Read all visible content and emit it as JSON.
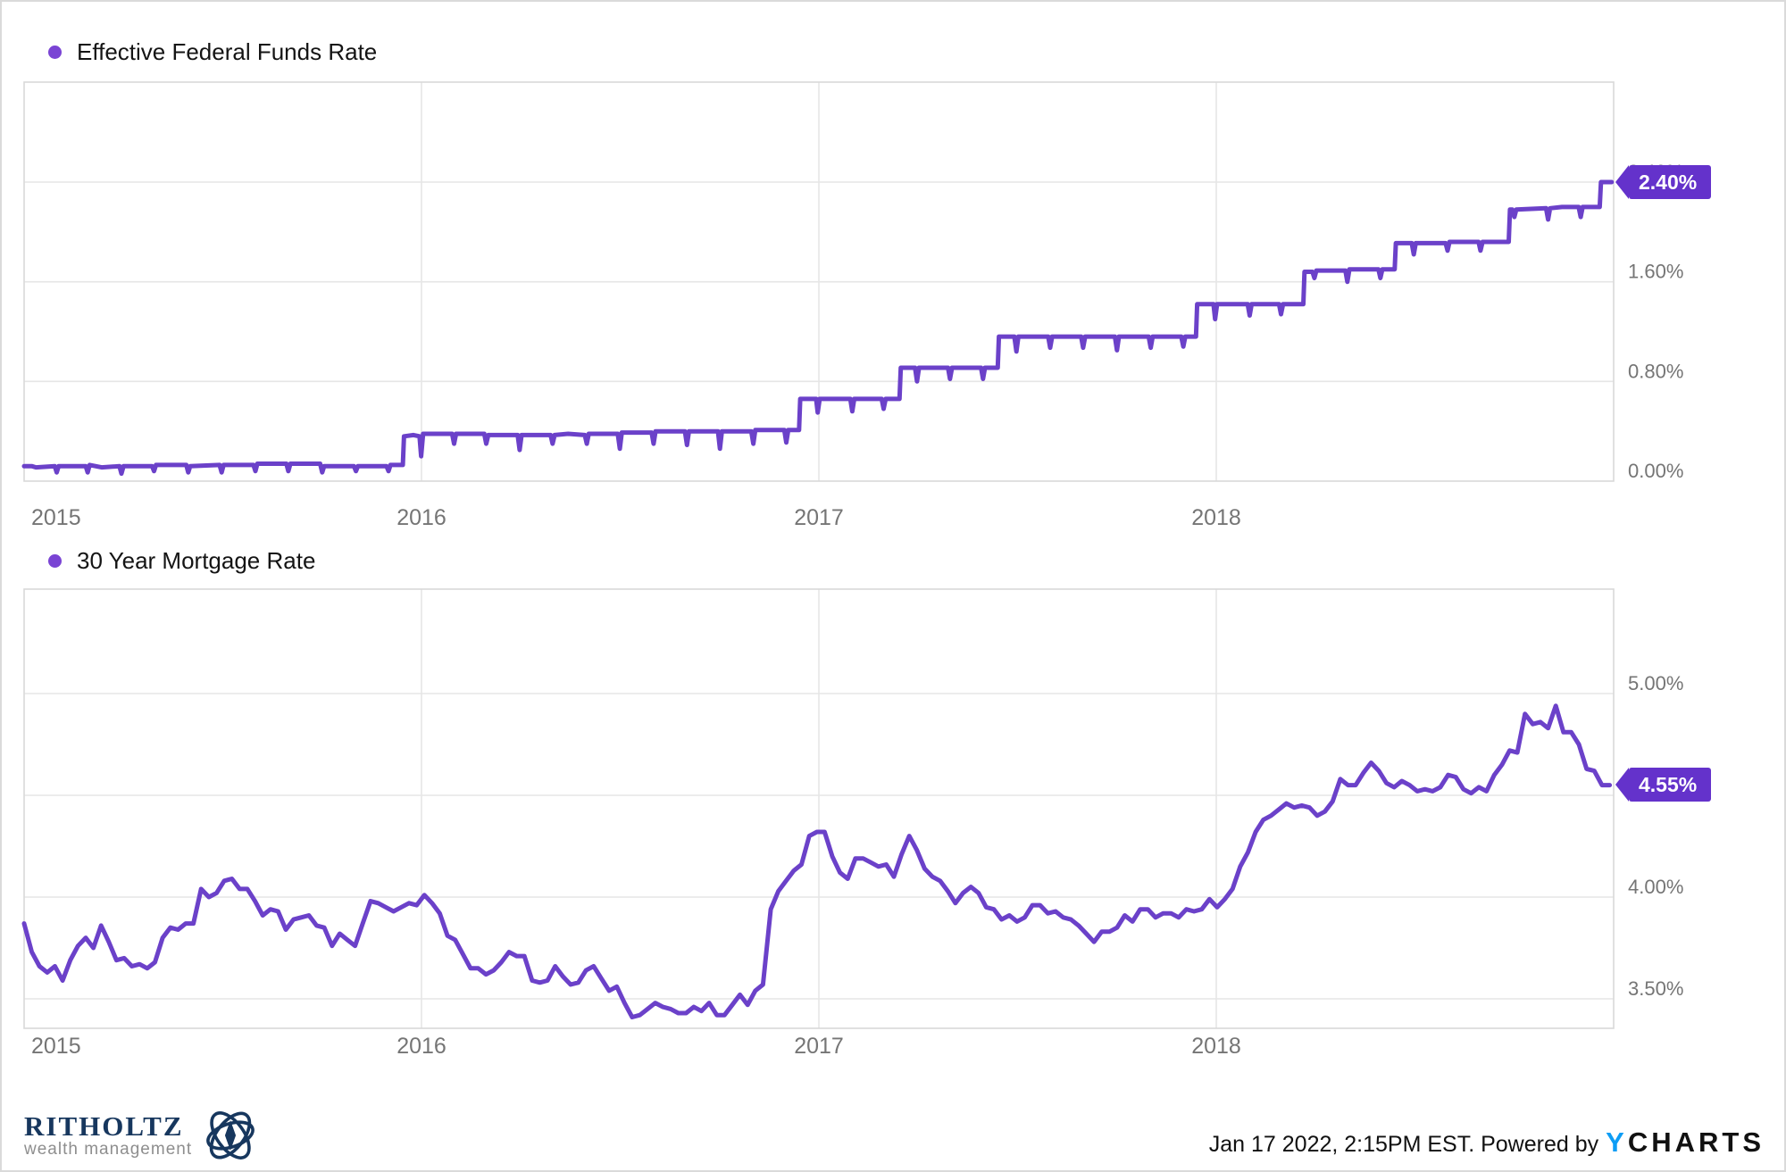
{
  "footer": {
    "timestamp": "Jan 17 2022, 2:15PM EST. Powered by",
    "ycharts_y": "Y",
    "ycharts_rest": "CHARTS",
    "brand_name": "RITHOLTZ",
    "brand_sub": "wealth management"
  },
  "colors": {
    "line": "#6B41C9",
    "badge": "#6432CB",
    "legend_dot": "#7A44D4",
    "gridline": "#E6E6E6",
    "plot_border": "#D9D9D9",
    "tick_text": "#757575",
    "ycharts_blue": "#0D9DF5",
    "brand_navy": "#17375E"
  },
  "chart_data": [
    {
      "type": "line",
      "title": "",
      "legend_label": "Effective Federal Funds Rate",
      "badge_label": "2.40%",
      "last_value": 2.4,
      "xlabel": "",
      "ylabel": "",
      "xlim": [
        2015,
        2019
      ],
      "ylim": [
        0,
        3.2
      ],
      "grid": true,
      "legend_position": "top-left",
      "x_ticks": [
        {
          "t": 2015,
          "label": "2015"
        },
        {
          "t": 2016,
          "label": "2016"
        },
        {
          "t": 2017,
          "label": "2017"
        },
        {
          "t": 2018,
          "label": "2018"
        }
      ],
      "y_ticks": [
        {
          "v": 0.0,
          "label": "0.00%"
        },
        {
          "v": 0.8,
          "label": "0.80%"
        },
        {
          "v": 1.6,
          "label": "1.60%"
        },
        {
          "v": 2.4,
          "label": "2.40%"
        }
      ],
      "gridline_values": [
        0.8,
        1.6,
        2.4
      ],
      "points": [
        [
          2015.0,
          0.12
        ],
        [
          2015.02,
          0.12
        ],
        [
          2015.03,
          0.11
        ],
        [
          2015.077,
          0.12
        ],
        [
          2015.082,
          0.07
        ],
        [
          2015.087,
          0.12
        ],
        [
          2015.155,
          0.12
        ],
        [
          2015.16,
          0.07
        ],
        [
          2015.165,
          0.13
        ],
        [
          2015.195,
          0.11
        ],
        [
          2015.24,
          0.12
        ],
        [
          2015.245,
          0.06
        ],
        [
          2015.25,
          0.12
        ],
        [
          2015.322,
          0.12
        ],
        [
          2015.327,
          0.08
        ],
        [
          2015.332,
          0.13
        ],
        [
          2015.408,
          0.13
        ],
        [
          2015.413,
          0.07
        ],
        [
          2015.418,
          0.12
        ],
        [
          2015.492,
          0.13
        ],
        [
          2015.497,
          0.07
        ],
        [
          2015.502,
          0.13
        ],
        [
          2015.577,
          0.13
        ],
        [
          2015.582,
          0.08
        ],
        [
          2015.587,
          0.14
        ],
        [
          2015.66,
          0.14
        ],
        [
          2015.665,
          0.08
        ],
        [
          2015.67,
          0.14
        ],
        [
          2015.745,
          0.14
        ],
        [
          2015.75,
          0.07
        ],
        [
          2015.755,
          0.12
        ],
        [
          2015.83,
          0.12
        ],
        [
          2015.835,
          0.08
        ],
        [
          2015.84,
          0.12
        ],
        [
          2015.912,
          0.12
        ],
        [
          2015.917,
          0.08
        ],
        [
          2015.922,
          0.13
        ],
        [
          2015.953,
          0.13
        ],
        [
          2015.956,
          0.36
        ],
        [
          2015.98,
          0.37
        ],
        [
          2015.995,
          0.36
        ],
        [
          2015.999,
          0.2
        ],
        [
          2016.004,
          0.38
        ],
        [
          2016.077,
          0.38
        ],
        [
          2016.082,
          0.3
        ],
        [
          2016.087,
          0.38
        ],
        [
          2016.158,
          0.38
        ],
        [
          2016.163,
          0.3
        ],
        [
          2016.168,
          0.37
        ],
        [
          2016.242,
          0.37
        ],
        [
          2016.247,
          0.25
        ],
        [
          2016.252,
          0.37
        ],
        [
          2016.325,
          0.37
        ],
        [
          2016.33,
          0.3
        ],
        [
          2016.335,
          0.37
        ],
        [
          2016.369,
          0.38
        ],
        [
          2016.411,
          0.37
        ],
        [
          2016.416,
          0.3
        ],
        [
          2016.421,
          0.38
        ],
        [
          2016.494,
          0.38
        ],
        [
          2016.499,
          0.26
        ],
        [
          2016.504,
          0.39
        ],
        [
          2016.579,
          0.39
        ],
        [
          2016.584,
          0.3
        ],
        [
          2016.589,
          0.4
        ],
        [
          2016.663,
          0.4
        ],
        [
          2016.668,
          0.29
        ],
        [
          2016.673,
          0.4
        ],
        [
          2016.746,
          0.4
        ],
        [
          2016.751,
          0.26
        ],
        [
          2016.756,
          0.4
        ],
        [
          2016.83,
          0.4
        ],
        [
          2016.835,
          0.3
        ],
        [
          2016.84,
          0.41
        ],
        [
          2016.913,
          0.41
        ],
        [
          2016.918,
          0.31
        ],
        [
          2016.923,
          0.41
        ],
        [
          2016.95,
          0.41
        ],
        [
          2016.953,
          0.66
        ],
        [
          2016.993,
          0.66
        ],
        [
          2016.997,
          0.55
        ],
        [
          2017.002,
          0.66
        ],
        [
          2017.079,
          0.66
        ],
        [
          2017.084,
          0.56
        ],
        [
          2017.089,
          0.66
        ],
        [
          2017.158,
          0.66
        ],
        [
          2017.163,
          0.58
        ],
        [
          2017.168,
          0.66
        ],
        [
          2017.203,
          0.66
        ],
        [
          2017.206,
          0.91
        ],
        [
          2017.242,
          0.91
        ],
        [
          2017.247,
          0.8
        ],
        [
          2017.252,
          0.91
        ],
        [
          2017.325,
          0.91
        ],
        [
          2017.33,
          0.82
        ],
        [
          2017.335,
          0.91
        ],
        [
          2017.408,
          0.91
        ],
        [
          2017.413,
          0.82
        ],
        [
          2017.418,
          0.91
        ],
        [
          2017.45,
          0.91
        ],
        [
          2017.453,
          1.16
        ],
        [
          2017.492,
          1.16
        ],
        [
          2017.497,
          1.04
        ],
        [
          2017.502,
          1.16
        ],
        [
          2017.577,
          1.16
        ],
        [
          2017.582,
          1.07
        ],
        [
          2017.587,
          1.16
        ],
        [
          2017.66,
          1.16
        ],
        [
          2017.665,
          1.07
        ],
        [
          2017.67,
          1.16
        ],
        [
          2017.745,
          1.16
        ],
        [
          2017.75,
          1.05
        ],
        [
          2017.755,
          1.16
        ],
        [
          2017.83,
          1.16
        ],
        [
          2017.835,
          1.07
        ],
        [
          2017.84,
          1.16
        ],
        [
          2017.912,
          1.16
        ],
        [
          2017.917,
          1.08
        ],
        [
          2017.922,
          1.16
        ],
        [
          2017.949,
          1.16
        ],
        [
          2017.952,
          1.42
        ],
        [
          2017.993,
          1.42
        ],
        [
          2017.997,
          1.3
        ],
        [
          2018.002,
          1.42
        ],
        [
          2018.079,
          1.42
        ],
        [
          2018.084,
          1.33
        ],
        [
          2018.089,
          1.42
        ],
        [
          2018.158,
          1.42
        ],
        [
          2018.163,
          1.34
        ],
        [
          2018.168,
          1.42
        ],
        [
          2018.219,
          1.42
        ],
        [
          2018.222,
          1.68
        ],
        [
          2018.242,
          1.68
        ],
        [
          2018.247,
          1.63
        ],
        [
          2018.252,
          1.69
        ],
        [
          2018.325,
          1.69
        ],
        [
          2018.33,
          1.6
        ],
        [
          2018.335,
          1.7
        ],
        [
          2018.408,
          1.7
        ],
        [
          2018.413,
          1.63
        ],
        [
          2018.418,
          1.7
        ],
        [
          2018.449,
          1.7
        ],
        [
          2018.452,
          1.91
        ],
        [
          2018.492,
          1.91
        ],
        [
          2018.497,
          1.82
        ],
        [
          2018.502,
          1.91
        ],
        [
          2018.577,
          1.91
        ],
        [
          2018.582,
          1.85
        ],
        [
          2018.587,
          1.92
        ],
        [
          2018.66,
          1.92
        ],
        [
          2018.665,
          1.85
        ],
        [
          2018.67,
          1.92
        ],
        [
          2018.736,
          1.92
        ],
        [
          2018.739,
          2.18
        ],
        [
          2018.745,
          2.18
        ],
        [
          2018.75,
          2.12
        ],
        [
          2018.755,
          2.18
        ],
        [
          2018.83,
          2.19
        ],
        [
          2018.835,
          2.1
        ],
        [
          2018.84,
          2.19
        ],
        [
          2018.87,
          2.2
        ],
        [
          2018.912,
          2.2
        ],
        [
          2018.917,
          2.12
        ],
        [
          2018.922,
          2.2
        ],
        [
          2018.965,
          2.2
        ],
        [
          2018.968,
          2.4
        ],
        [
          2018.995,
          2.4
        ]
      ]
    },
    {
      "type": "line",
      "title": "",
      "legend_label": "30 Year Mortgage Rate",
      "badge_label": "4.55%",
      "last_value": 4.55,
      "xlabel": "",
      "ylabel": "",
      "xlim": [
        2015,
        2019
      ],
      "ylim": [
        3.35,
        5.5
      ],
      "grid": true,
      "legend_position": "top-left",
      "x_ticks": [
        {
          "t": 2015,
          "label": "2015"
        },
        {
          "t": 2016,
          "label": "2016"
        },
        {
          "t": 2017,
          "label": "2017"
        },
        {
          "t": 2018,
          "label": "2018"
        }
      ],
      "y_ticks": [
        {
          "v": 3.5,
          "label": "3.50%"
        },
        {
          "v": 4.0,
          "label": "4.00%"
        },
        {
          "v": 5.0,
          "label": "5.00%"
        }
      ],
      "gridline_values": [
        3.5,
        4.0,
        4.5,
        5.0
      ],
      "x_start": 2015.0,
      "x_step_years": 0.019369,
      "values": [
        3.87,
        3.73,
        3.66,
        3.63,
        3.66,
        3.59,
        3.69,
        3.76,
        3.8,
        3.75,
        3.86,
        3.78,
        3.69,
        3.7,
        3.66,
        3.67,
        3.65,
        3.68,
        3.8,
        3.85,
        3.84,
        3.87,
        3.87,
        4.04,
        4.0,
        4.02,
        4.08,
        4.09,
        4.04,
        4.04,
        3.98,
        3.91,
        3.94,
        3.93,
        3.84,
        3.89,
        3.9,
        3.91,
        3.86,
        3.85,
        3.76,
        3.82,
        3.79,
        3.76,
        3.87,
        3.98,
        3.97,
        3.95,
        3.93,
        3.95,
        3.97,
        3.96,
        4.01,
        3.97,
        3.92,
        3.81,
        3.79,
        3.72,
        3.65,
        3.65,
        3.62,
        3.64,
        3.68,
        3.73,
        3.71,
        3.71,
        3.59,
        3.58,
        3.59,
        3.66,
        3.61,
        3.57,
        3.58,
        3.64,
        3.66,
        3.6,
        3.54,
        3.56,
        3.48,
        3.41,
        3.42,
        3.45,
        3.48,
        3.46,
        3.45,
        3.43,
        3.43,
        3.46,
        3.44,
        3.48,
        3.42,
        3.42,
        3.47,
        3.52,
        3.47,
        3.54,
        3.57,
        3.94,
        4.03,
        4.08,
        4.13,
        4.16,
        4.3,
        4.32,
        4.32,
        4.2,
        4.12,
        4.09,
        4.19,
        4.19,
        4.17,
        4.15,
        4.16,
        4.1,
        4.21,
        4.3,
        4.23,
        4.14,
        4.1,
        4.08,
        4.03,
        3.97,
        4.02,
        4.05,
        4.02,
        3.95,
        3.94,
        3.89,
        3.91,
        3.88,
        3.9,
        3.96,
        3.96,
        3.92,
        3.93,
        3.9,
        3.89,
        3.86,
        3.82,
        3.78,
        3.83,
        3.83,
        3.85,
        3.91,
        3.88,
        3.94,
        3.94,
        3.9,
        3.92,
        3.92,
        3.9,
        3.94,
        3.93,
        3.94,
        3.99,
        3.95,
        3.99,
        4.04,
        4.15,
        4.22,
        4.32,
        4.38,
        4.4,
        4.43,
        4.46,
        4.44,
        4.45,
        4.44,
        4.4,
        4.42,
        4.47,
        4.58,
        4.55,
        4.55,
        4.61,
        4.66,
        4.62,
        4.56,
        4.54,
        4.57,
        4.55,
        4.52,
        4.53,
        4.52,
        4.54,
        4.6,
        4.59,
        4.53,
        4.51,
        4.54,
        4.52,
        4.6,
        4.65,
        4.72,
        4.71,
        4.9,
        4.85,
        4.86,
        4.83,
        4.94,
        4.81,
        4.81,
        4.75,
        4.63,
        4.62,
        4.55,
        4.55
      ]
    }
  ]
}
